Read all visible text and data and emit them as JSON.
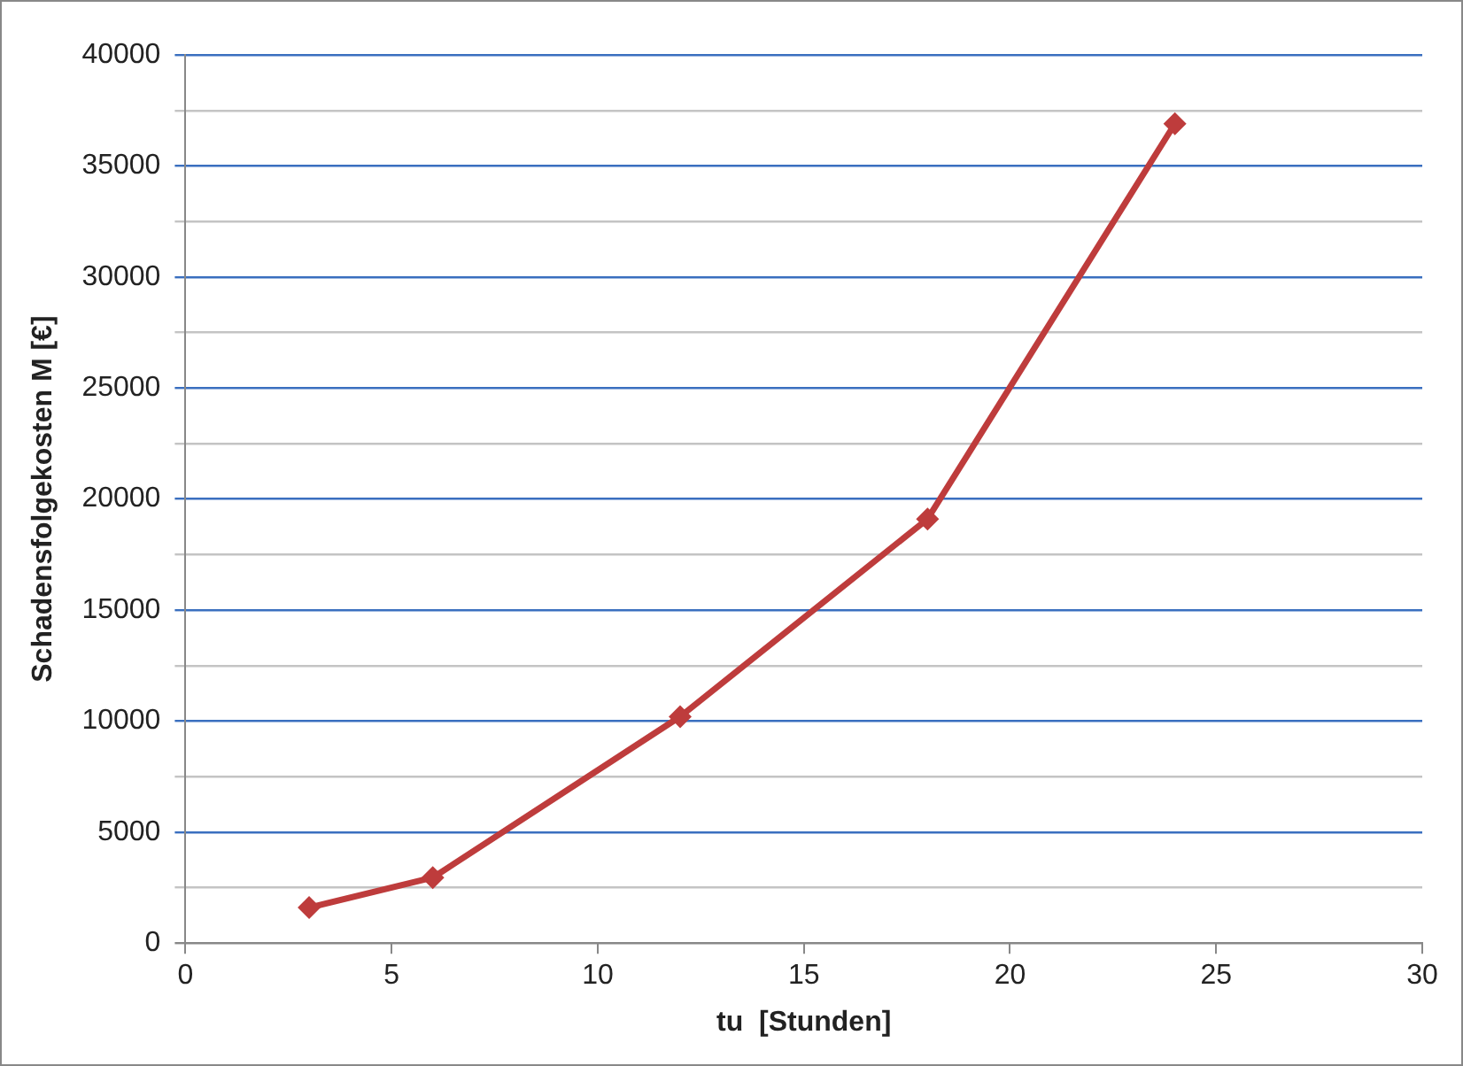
{
  "chart_data": {
    "type": "line",
    "xlabel": "tu  [Stunden]",
    "ylabel": "Schadensfolgekosten M [€]",
    "x": [
      3,
      6,
      12,
      18,
      24
    ],
    "series": [
      {
        "color": "#be3c3c",
        "values": [
          1600,
          2950,
          10200,
          19100,
          36900
        ]
      }
    ],
    "xlim": [
      0,
      30
    ],
    "xticks": [
      0,
      5,
      10,
      15,
      20,
      25,
      30
    ],
    "ylim": [
      0,
      40000
    ],
    "yticks": [
      0,
      {
        "value": 2500,
        "label": null
      },
      5000,
      {
        "value": 7500,
        "label": null
      },
      10000,
      {
        "value": 12500,
        "label": null
      },
      15000,
      {
        "value": 17500,
        "label": null
      },
      20000,
      {
        "value": 22500,
        "label": null
      },
      25000,
      {
        "value": 27500,
        "label": null
      },
      30000,
      {
        "value": 32500,
        "label": null
      },
      35000,
      {
        "value": 37500,
        "label": null
      },
      40000
    ],
    "grid": "y",
    "legend": false,
    "marker": "diamond",
    "line_style": "solid"
  }
}
